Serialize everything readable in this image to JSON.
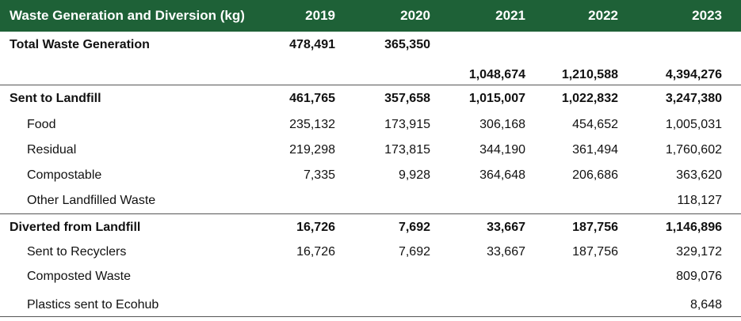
{
  "table": {
    "header": {
      "title": "Waste Generation and Diversion (kg)",
      "years": [
        "2019",
        "2020",
        "2021",
        "2022",
        "2023"
      ]
    },
    "total": {
      "label": "Total Waste Generation",
      "values_top": [
        "478,491",
        "365,350",
        "",
        "",
        ""
      ],
      "values_bottom": [
        "",
        "",
        "1,048,674",
        "1,210,588",
        "4,394,276"
      ]
    },
    "landfill": {
      "label": "Sent to Landfill",
      "values": [
        "461,765",
        "357,658",
        "1,015,007",
        "1,022,832",
        "3,247,380"
      ],
      "items": [
        {
          "label": "Food",
          "values": [
            "235,132",
            "173,915",
            "306,168",
            "454,652",
            "1,005,031"
          ]
        },
        {
          "label": "Residual",
          "values": [
            "219,298",
            "173,815",
            "344,190",
            "361,494",
            "1,760,602"
          ]
        },
        {
          "label": "Compostable",
          "values": [
            "7,335",
            "9,928",
            "364,648",
            "206,686",
            "363,620"
          ]
        },
        {
          "label": "Other Landfilled Waste",
          "values": [
            "",
            "",
            "",
            "",
            "118,127"
          ]
        }
      ]
    },
    "diverted": {
      "label": "Diverted from Landfill",
      "values": [
        "16,726",
        "7,692",
        "33,667",
        "187,756",
        "1,146,896"
      ],
      "items": [
        {
          "label": "Sent to Recyclers",
          "values": [
            "16,726",
            "7,692",
            "33,667",
            "187,756",
            "329,172"
          ]
        },
        {
          "label": "Composted Waste",
          "values": [
            "",
            "",
            "",
            "",
            "809,076"
          ]
        },
        {
          "label": "Plastics sent to Ecohub",
          "values": [
            "",
            "",
            "",
            "",
            "8,648"
          ]
        }
      ]
    }
  }
}
